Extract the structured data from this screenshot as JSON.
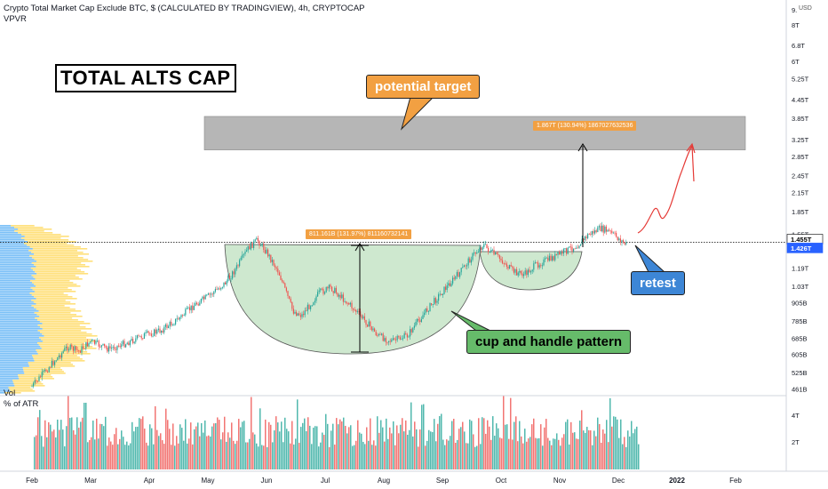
{
  "header": {
    "title": "Crypto Total Market Cap Exclude BTC, $ (CALCULATED BY TRADINGVIEW), 4h, CRYPTOCAP",
    "indicator": "VPVR",
    "volume_label": "Vol",
    "volume_sub": "% of ATR",
    "currency": "USD"
  },
  "title_box": "TOTAL ALTS CAP",
  "annotations": {
    "potential_target": "potential target",
    "cup_handle": "cup and handle pattern",
    "retest": "retest",
    "measure_upper": "1.867T (130.94%) 1867027632536",
    "measure_lower": "811.161B (131.97%) 811160732141"
  },
  "colors": {
    "up": "#26a69a",
    "down": "#ef5350",
    "target_zone": "#9e9e9e",
    "cup_fill": "#a5d6a7",
    "callout_orange": "#f2a042",
    "callout_green": "#66bb6a",
    "callout_blue": "#3d86d6",
    "vp_blue": "#64b5f6",
    "vp_yellow": "#ffd54f",
    "projection": "#e53935"
  },
  "price_badges": [
    {
      "label": "1.455T",
      "value": 1.455,
      "style": "white"
    },
    {
      "label": "1.426T",
      "value": 1.426,
      "style": "blue"
    }
  ],
  "chart_data": {
    "type": "line",
    "log_scale": true,
    "x_ticks": [
      "Feb",
      "Mar",
      "Apr",
      "May",
      "Jun",
      "Jul",
      "Aug",
      "Sep",
      "Oct",
      "Nov",
      "Dec",
      "2022",
      "Feb"
    ],
    "y_ticks": [
      {
        "label": "9.",
        "value": 9.0
      },
      {
        "label": "8T",
        "value": 8.0
      },
      {
        "label": "6.8T",
        "value": 6.8
      },
      {
        "label": "6T",
        "value": 6.0
      },
      {
        "label": "5.25T",
        "value": 5.25
      },
      {
        "label": "4.45T",
        "value": 4.45
      },
      {
        "label": "3.85T",
        "value": 3.85
      },
      {
        "label": "3.25T",
        "value": 3.25
      },
      {
        "label": "2.85T",
        "value": 2.85
      },
      {
        "label": "2.45T",
        "value": 2.45
      },
      {
        "label": "2.15T",
        "value": 2.15
      },
      {
        "label": "1.85T",
        "value": 1.85
      },
      {
        "label": "1.55T",
        "value": 1.55
      },
      {
        "label": "1.19T",
        "value": 1.19
      },
      {
        "label": "1.03T",
        "value": 1.03
      },
      {
        "label": "905B",
        "value": 0.905
      },
      {
        "label": "785B",
        "value": 0.785
      },
      {
        "label": "685B",
        "value": 0.685
      },
      {
        "label": "605B",
        "value": 0.605
      },
      {
        "label": "525B",
        "value": 0.525
      },
      {
        "label": "461B",
        "value": 0.461
      }
    ],
    "price_series": [
      [
        1.0,
        0.47
      ],
      [
        1.3,
        0.55
      ],
      [
        1.6,
        0.64
      ],
      [
        1.8,
        0.62
      ],
      [
        2.0,
        0.67
      ],
      [
        2.3,
        0.63
      ],
      [
        2.6,
        0.66
      ],
      [
        2.9,
        0.7
      ],
      [
        3.2,
        0.73
      ],
      [
        3.5,
        0.8
      ],
      [
        3.8,
        0.9
      ],
      [
        4.0,
        0.95
      ],
      [
        4.3,
        1.06
      ],
      [
        4.5,
        1.2
      ],
      [
        4.7,
        1.4
      ],
      [
        4.85,
        1.48
      ],
      [
        5.0,
        1.35
      ],
      [
        5.2,
        1.16
      ],
      [
        5.45,
        0.85
      ],
      [
        5.6,
        0.82
      ],
      [
        5.9,
        0.98
      ],
      [
        6.1,
        1.02
      ],
      [
        6.4,
        0.9
      ],
      [
        6.7,
        0.78
      ],
      [
        6.9,
        0.7
      ],
      [
        7.15,
        0.67
      ],
      [
        7.4,
        0.7
      ],
      [
        7.7,
        0.84
      ],
      [
        8.0,
        0.99
      ],
      [
        8.3,
        1.15
      ],
      [
        8.5,
        1.3
      ],
      [
        8.7,
        1.43
      ],
      [
        8.8,
        1.36
      ],
      [
        9.0,
        1.27
      ],
      [
        9.2,
        1.16
      ],
      [
        9.4,
        1.13
      ],
      [
        9.6,
        1.22
      ],
      [
        9.85,
        1.28
      ],
      [
        10.1,
        1.36
      ],
      [
        10.3,
        1.42
      ],
      [
        10.5,
        1.55
      ],
      [
        10.7,
        1.62
      ],
      [
        10.85,
        1.58
      ],
      [
        11.0,
        1.5
      ],
      [
        11.15,
        1.42
      ]
    ],
    "volume_scale_labels": [
      "4T",
      "2T"
    ],
    "target_zone": [
      3.0,
      3.9
    ],
    "neckline": 1.455
  }
}
